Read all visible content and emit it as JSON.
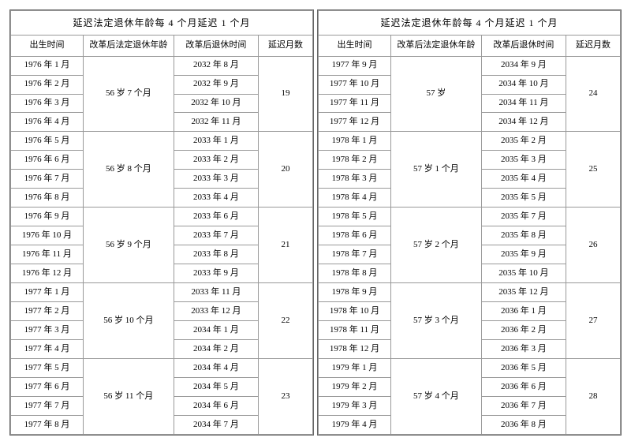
{
  "title": "延迟法定退休年龄每 4 个月延迟 1 个月",
  "headers": {
    "birth": "出生时间",
    "age": "改革后法定退休年龄",
    "retire": "改革后退休时间",
    "delay": "延迟月数"
  },
  "left": [
    {
      "age": "56 岁 7 个月",
      "delay": "19",
      "rows": [
        {
          "birth": "1976 年 1 月",
          "retire": "2032 年 8 月"
        },
        {
          "birth": "1976 年 2 月",
          "retire": "2032 年 9 月"
        },
        {
          "birth": "1976 年 3 月",
          "retire": "2032 年 10 月"
        },
        {
          "birth": "1976 年 4 月",
          "retire": "2032 年 11 月"
        }
      ]
    },
    {
      "age": "56 岁 8 个月",
      "delay": "20",
      "rows": [
        {
          "birth": "1976 年 5 月",
          "retire": "2033 年 1 月"
        },
        {
          "birth": "1976 年 6 月",
          "retire": "2033 年 2 月"
        },
        {
          "birth": "1976 年 7 月",
          "retire": "2033 年 3 月"
        },
        {
          "birth": "1976 年 8 月",
          "retire": "2033 年 4 月"
        }
      ]
    },
    {
      "age": "56 岁 9 个月",
      "delay": "21",
      "rows": [
        {
          "birth": "1976 年 9 月",
          "retire": "2033 年 6 月"
        },
        {
          "birth": "1976 年 10 月",
          "retire": "2033 年 7 月"
        },
        {
          "birth": "1976 年 11 月",
          "retire": "2033 年 8 月"
        },
        {
          "birth": "1976 年 12 月",
          "retire": "2033 年 9 月"
        }
      ]
    },
    {
      "age": "56 岁 10 个月",
      "delay": "22",
      "rows": [
        {
          "birth": "1977 年 1 月",
          "retire": "2033 年 11 月"
        },
        {
          "birth": "1977 年 2 月",
          "retire": "2033 年 12 月"
        },
        {
          "birth": "1977 年 3 月",
          "retire": "2034 年 1 月"
        },
        {
          "birth": "1977 年 4 月",
          "retire": "2034 年 2 月"
        }
      ]
    },
    {
      "age": "56 岁 11 个月",
      "delay": "23",
      "rows": [
        {
          "birth": "1977 年 5 月",
          "retire": "2034 年 4 月"
        },
        {
          "birth": "1977 年 6 月",
          "retire": "2034 年 5 月"
        },
        {
          "birth": "1977 年 7 月",
          "retire": "2034 年 6 月"
        },
        {
          "birth": "1977 年 8 月",
          "retire": "2034 年 7 月"
        }
      ]
    }
  ],
  "right": [
    {
      "age": "57 岁",
      "delay": "24",
      "rows": [
        {
          "birth": "1977 年 9 月",
          "retire": "2034 年 9 月"
        },
        {
          "birth": "1977 年 10 月",
          "retire": "2034 年 10 月"
        },
        {
          "birth": "1977 年 11 月",
          "retire": "2034 年 11 月"
        },
        {
          "birth": "1977 年 12 月",
          "retire": "2034 年 12 月"
        }
      ]
    },
    {
      "age": "57 岁 1 个月",
      "delay": "25",
      "rows": [
        {
          "birth": "1978 年 1 月",
          "retire": "2035 年 2 月"
        },
        {
          "birth": "1978 年 2 月",
          "retire": "2035 年 3 月"
        },
        {
          "birth": "1978 年 3 月",
          "retire": "2035 年 4 月"
        },
        {
          "birth": "1978 年 4 月",
          "retire": "2035 年 5 月"
        }
      ]
    },
    {
      "age": "57 岁 2 个月",
      "delay": "26",
      "rows": [
        {
          "birth": "1978 年 5 月",
          "retire": "2035 年 7 月"
        },
        {
          "birth": "1978 年 6 月",
          "retire": "2035 年 8 月"
        },
        {
          "birth": "1978 年 7 月",
          "retire": "2035 年 9 月"
        },
        {
          "birth": "1978 年 8 月",
          "retire": "2035 年 10 月"
        }
      ]
    },
    {
      "age": "57 岁 3 个月",
      "delay": "27",
      "rows": [
        {
          "birth": "1978 年 9 月",
          "retire": "2035 年 12 月"
        },
        {
          "birth": "1978 年 10 月",
          "retire": "2036 年 1 月"
        },
        {
          "birth": "1978 年 11 月",
          "retire": "2036 年 2 月"
        },
        {
          "birth": "1978 年 12 月",
          "retire": "2036 年 3 月"
        }
      ]
    },
    {
      "age": "57 岁 4 个月",
      "delay": "28",
      "rows": [
        {
          "birth": "1979 年 1 月",
          "retire": "2036 年 5 月"
        },
        {
          "birth": "1979 年 2 月",
          "retire": "2036 年 6 月"
        },
        {
          "birth": "1979 年 3 月",
          "retire": "2036 年 7 月"
        },
        {
          "birth": "1979 年 4 月",
          "retire": "2036 年 8 月"
        }
      ]
    }
  ]
}
